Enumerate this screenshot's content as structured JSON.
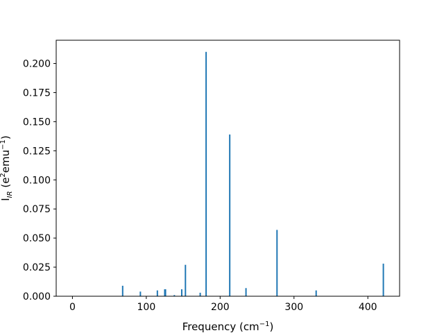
{
  "chart_data": {
    "type": "bar",
    "title": "",
    "xlabel": "Frequency (cm",
    "xlabel_sup": "−1",
    "xlabel_end": ")",
    "ylabel_main": "I",
    "ylabel_sub": "IR",
    "ylabel_rest": " (e",
    "ylabel_sup1": "2",
    "ylabel_mid": "emu",
    "ylabel_sup2": "−1",
    "ylabel_end": ")",
    "xlim": [
      -22,
      443
    ],
    "ylim": [
      0,
      0.22
    ],
    "xticks": [
      0,
      100,
      200,
      300,
      400
    ],
    "xtick_labels": [
      "0",
      "100",
      "200",
      "300",
      "400"
    ],
    "yticks": [
      0,
      0.025,
      0.05,
      0.075,
      0.1,
      0.125,
      0.15,
      0.175,
      0.2
    ],
    "ytick_labels": [
      "0.000",
      "0.025",
      "0.050",
      "0.075",
      "0.100",
      "0.125",
      "0.150",
      "0.175",
      "0.200"
    ],
    "grid": false,
    "bar_color": "#1f77b4",
    "x": [
      68,
      92,
      115,
      125,
      126,
      138,
      148,
      153,
      173,
      181,
      213,
      235,
      277,
      330,
      421
    ],
    "values": [
      0.009,
      0.004,
      0.005,
      0.006,
      0.006,
      0.001,
      0.006,
      0.027,
      0.003,
      0.21,
      0.139,
      0.007,
      0.057,
      0.005,
      0.028
    ]
  }
}
